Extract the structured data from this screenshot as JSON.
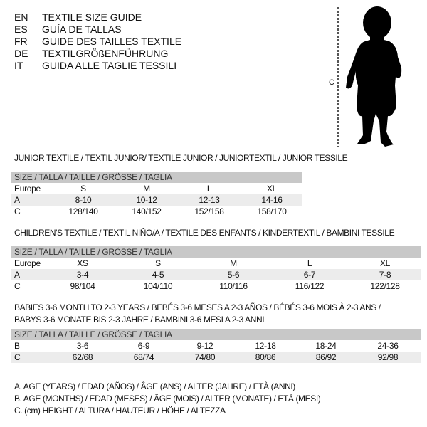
{
  "titles": [
    {
      "code": "EN",
      "text": "TEXTILE SIZE GUIDE"
    },
    {
      "code": "ES",
      "text": "GUÍA DE TALLAS"
    },
    {
      "code": "FR",
      "text": "GUIDE DES TAILLES TEXTILE"
    },
    {
      "code": "DE",
      "text": "TEXTILGRÖßENFÜHRUNG"
    },
    {
      "code": "IT",
      "text": "GUIDA ALLE TAGLIE TESSILI"
    }
  ],
  "figure": {
    "measure_label": "C"
  },
  "size_header": "SIZE / TALLA / TAILLE / GRÖSSE / TAGLIA",
  "junior": {
    "title": "JUNIOR TEXTILE / TEXTIL JUNIOR/ TEXTILE JUNIOR / JUNIORTEXTIL / JUNIOR TESSILE",
    "rows": [
      {
        "label": "Europe",
        "values": [
          "S",
          "M",
          "L",
          "XL"
        ]
      },
      {
        "label": "A",
        "values": [
          "8-10",
          "10-12",
          "12-13",
          "14-16"
        ]
      },
      {
        "label": "C",
        "values": [
          "128/140",
          "140/152",
          "152/158",
          "158/170"
        ]
      }
    ]
  },
  "children": {
    "title": "CHILDREN'S TEXTILE / TEXTIL NIÑO/A / TEXTILE DES ENFANTS / KINDERTEXTIL / BAMBINI TESSILE",
    "rows": [
      {
        "label": "Europe",
        "values": [
          "XS",
          "S",
          "M",
          "L",
          "XL"
        ]
      },
      {
        "label": "A",
        "values": [
          "3-4",
          "4-5",
          "5-6",
          "6-7",
          "7-8"
        ]
      },
      {
        "label": "C",
        "values": [
          "98/104",
          "104/110",
          "110/116",
          "116/122",
          "122/128"
        ]
      }
    ]
  },
  "babies": {
    "title_line1": "BABIES 3-6 MONTH TO 2-3 YEARS / BEBÉS 3-6 MESES A 2-3 AÑOS / BÉBÉS 3-6 MOIS À 2-3 ANS /",
    "title_line2": "BABYS 3-6 MONATE BIS 2-3 JAHRE / BAMBINI 3-6 MESI A 2-3 ANNI",
    "rows": [
      {
        "label": "B",
        "values": [
          "3-6",
          "6-9",
          "9-12",
          "12-18",
          "18-24",
          "24-36"
        ]
      },
      {
        "label": "C",
        "values": [
          "62/68",
          "68/74",
          "74/80",
          "80/86",
          "86/92",
          "92/98"
        ]
      }
    ]
  },
  "legend": [
    "A. AGE (YEARS) / EDAD (AÑOS) / ÂGE (ANS) / ALTER (JAHRE) / ETÀ (ANNI)",
    "B. AGE (MONTHS) / EDAD (MESES) / ÂGE (MOIS) / ALTER (MONATE) / ETÀ (MESI)",
    "C. (cm) HEIGHT / ALTURA / HAUTEUR / HÖHE / ALTEZZA"
  ]
}
